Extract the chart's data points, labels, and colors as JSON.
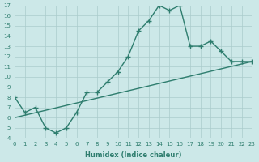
{
  "xlabel": "Humidex (Indice chaleur)",
  "xlim": [
    0,
    23
  ],
  "ylim": [
    4,
    17
  ],
  "xticks": [
    0,
    1,
    2,
    3,
    4,
    5,
    6,
    7,
    8,
    9,
    10,
    11,
    12,
    13,
    14,
    15,
    16,
    17,
    18,
    19,
    20,
    21,
    22,
    23
  ],
  "yticks": [
    4,
    5,
    6,
    7,
    8,
    9,
    10,
    11,
    12,
    13,
    14,
    15,
    16,
    17
  ],
  "line1_x": [
    0,
    1,
    2,
    3,
    4,
    5,
    6,
    7,
    8,
    9,
    10,
    11,
    12,
    13,
    14,
    15,
    16,
    17,
    18,
    19,
    20,
    21,
    22,
    23
  ],
  "line1_y": [
    8,
    6.5,
    7.0,
    5.0,
    4.5,
    5.0,
    6.5,
    8.5,
    8.5,
    9.5,
    10.5,
    12.0,
    14.5,
    15.5,
    17.0,
    16.5,
    17.0,
    13.0,
    13.0,
    13.5,
    12.5,
    11.5,
    11.5,
    11.5
  ],
  "line2_x": [
    0,
    23
  ],
  "line2_y": [
    6.0,
    11.5
  ],
  "line_color": "#2e7d6e",
  "bg_color": "#cce8e8",
  "grid_color": "#aacccc"
}
